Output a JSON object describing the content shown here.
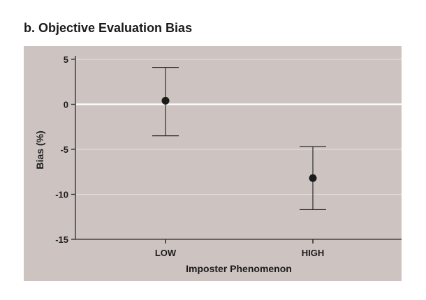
{
  "chart_data": {
    "type": "scatter",
    "title": "b. Objective Evaluation Bias",
    "xlabel": "Imposter Phenomenon",
    "ylabel": "Bias (%)",
    "categories": [
      "LOW",
      "HIGH"
    ],
    "ylim": [
      -15,
      5
    ],
    "yticks": [
      5,
      0,
      -5,
      -10,
      -15
    ],
    "points": [
      {
        "category": "LOW",
        "mean": 0.4,
        "upper": 4.1,
        "lower": -3.5
      },
      {
        "category": "HIGH",
        "mean": -8.2,
        "upper": -4.7,
        "lower": -11.7
      }
    ],
    "grid": true,
    "colors": {
      "plot_background": "#cdc4c1",
      "gridline": "#e6dfdc",
      "zero_line": "#ffffff",
      "marker": "#1b1b1b",
      "error_bar": "#2b2b2b"
    }
  }
}
